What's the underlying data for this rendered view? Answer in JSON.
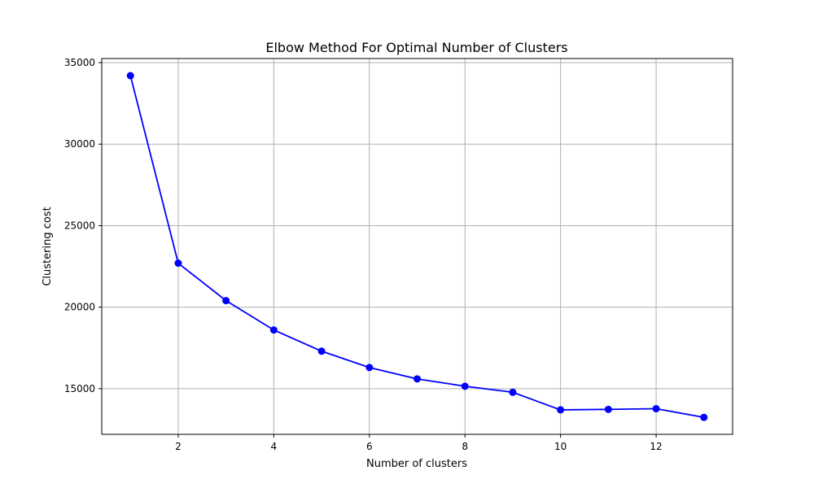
{
  "chart_data": {
    "type": "line",
    "title": "Elbow Method For Optimal Number of Clusters",
    "xlabel": "Number of clusters",
    "ylabel": "Clustering cost",
    "x": [
      1,
      2,
      3,
      4,
      5,
      6,
      7,
      8,
      9,
      10,
      11,
      12,
      13
    ],
    "series": [
      {
        "values": [
          34200,
          22700,
          20400,
          18600,
          17300,
          16300,
          15600,
          15150,
          14780,
          13700,
          13730,
          13770,
          13240
        ]
      }
    ],
    "xticks": [
      2,
      4,
      6,
      8,
      10,
      12
    ],
    "yticks": [
      15000,
      20000,
      25000,
      30000,
      35000
    ],
    "xlim": [
      0.4,
      13.6
    ],
    "ylim": [
      12200,
      35250
    ],
    "grid": true,
    "line_color": "#0000ff",
    "marker": "circle"
  }
}
